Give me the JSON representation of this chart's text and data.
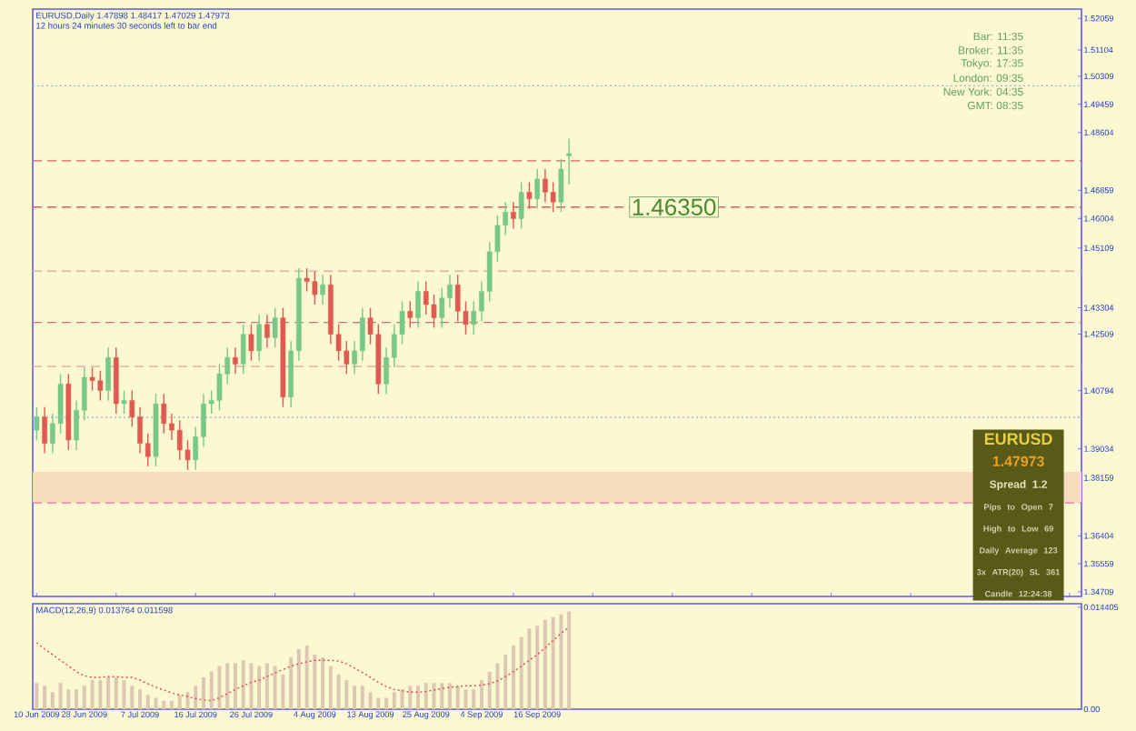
{
  "chart_data": [
    {
      "type": "candlestick",
      "title": "EURUSD,Daily  1.47898 1.48417 1.47029 1.47973",
      "subtitle": "12 hours 24 minutes 30 seconds left to bar end",
      "categories": [
        null,
        null,
        null,
        null,
        null,
        null,
        null,
        null,
        null,
        null,
        null,
        null,
        null,
        null,
        null,
        null,
        null,
        null,
        null,
        null,
        null,
        null,
        null,
        null,
        null,
        null,
        null,
        null,
        null,
        null,
        null,
        null,
        null,
        null,
        null,
        null,
        null,
        null,
        null,
        null,
        null,
        null,
        null,
        null,
        null,
        null,
        null,
        null,
        null,
        null,
        null,
        null,
        null,
        null,
        null,
        null,
        null,
        null,
        null,
        null,
        null,
        null,
        null,
        null,
        null,
        null,
        null,
        null,
        null,
        null,
        null,
        null,
        null,
        null,
        null,
        null,
        null,
        null,
        null,
        null,
        null,
        null,
        null,
        null,
        null,
        null,
        null,
        null,
        null,
        null,
        null,
        null,
        null,
        null,
        null,
        null,
        null,
        null,
        null,
        null,
        null,
        null,
        null,
        null,
        null,
        null,
        null,
        null,
        null,
        null,
        null,
        null,
        null,
        null,
        null,
        null,
        null,
        null,
        null,
        null,
        null,
        null,
        null,
        null,
        null,
        null,
        null,
        null,
        null,
        null,
        null,
        null
      ],
      "ohlc": [
        [
          1.396,
          1.403,
          1.393,
          1.4
        ],
        [
          1.4,
          1.403,
          1.389,
          1.392
        ],
        [
          1.392,
          1.401,
          1.389,
          1.398
        ],
        [
          1.398,
          1.413,
          1.395,
          1.41
        ],
        [
          1.41,
          1.413,
          1.39,
          1.393
        ],
        [
          1.393,
          1.405,
          1.39,
          1.402
        ],
        [
          1.402,
          1.415,
          1.399,
          1.412
        ],
        [
          1.412,
          1.415,
          1.408,
          1.411
        ],
        [
          1.411,
          1.414,
          1.405,
          1.408
        ],
        [
          1.408,
          1.421,
          1.405,
          1.418
        ],
        [
          1.418,
          1.421,
          1.401,
          1.404
        ],
        [
          1.404,
          1.408,
          1.401,
          1.405
        ],
        [
          1.405,
          1.408,
          1.397,
          1.4
        ],
        [
          1.4,
          1.403,
          1.389,
          1.392
        ],
        [
          1.392,
          1.395,
          1.385,
          1.388
        ],
        [
          1.388,
          1.407,
          1.385,
          1.404
        ],
        [
          1.404,
          1.407,
          1.395,
          1.398
        ],
        [
          1.398,
          1.401,
          1.393,
          1.396
        ],
        [
          1.396,
          1.399,
          1.387,
          1.39
        ],
        [
          1.39,
          1.393,
          1.384,
          1.387
        ],
        [
          1.387,
          1.397,
          1.384,
          1.394
        ],
        [
          1.394,
          1.407,
          1.391,
          1.404
        ],
        [
          1.404,
          1.408,
          1.401,
          1.405
        ],
        [
          1.405,
          1.416,
          1.402,
          1.413
        ],
        [
          1.413,
          1.421,
          1.41,
          1.418
        ],
        [
          1.418,
          1.421,
          1.413,
          1.416
        ],
        [
          1.416,
          1.428,
          1.413,
          1.425
        ],
        [
          1.425,
          1.428,
          1.417,
          1.42
        ],
        [
          1.42,
          1.431,
          1.417,
          1.428
        ],
        [
          1.428,
          1.431,
          1.421,
          1.424
        ],
        [
          1.424,
          1.433,
          1.421,
          1.43
        ],
        [
          1.43,
          1.433,
          1.403,
          1.406
        ],
        [
          1.406,
          1.423,
          1.403,
          1.42
        ],
        [
          1.42,
          1.445,
          1.417,
          1.442
        ],
        [
          1.442,
          1.445,
          1.438,
          1.441
        ],
        [
          1.441,
          1.444,
          1.434,
          1.437
        ],
        [
          1.437,
          1.443,
          1.434,
          1.44
        ],
        [
          1.44,
          1.443,
          1.422,
          1.425
        ],
        [
          1.425,
          1.428,
          1.417,
          1.42
        ],
        [
          1.42,
          1.423,
          1.413,
          1.416
        ],
        [
          1.416,
          1.423,
          1.413,
          1.42
        ],
        [
          1.42,
          1.433,
          1.417,
          1.43
        ],
        [
          1.43,
          1.433,
          1.422,
          1.425
        ],
        [
          1.425,
          1.428,
          1.407,
          1.41
        ],
        [
          1.41,
          1.421,
          1.407,
          1.418
        ],
        [
          1.418,
          1.428,
          1.415,
          1.425
        ],
        [
          1.425,
          1.435,
          1.422,
          1.432
        ],
        [
          1.432,
          1.435,
          1.427,
          1.43
        ],
        [
          1.43,
          1.441,
          1.427,
          1.438
        ],
        [
          1.438,
          1.441,
          1.431,
          1.434
        ],
        [
          1.434,
          1.437,
          1.427,
          1.43
        ],
        [
          1.43,
          1.439,
          1.427,
          1.436
        ],
        [
          1.436,
          1.443,
          1.433,
          1.44
        ],
        [
          1.44,
          1.443,
          1.429,
          1.432
        ],
        [
          1.432,
          1.435,
          1.425,
          1.428
        ],
        [
          1.428,
          1.435,
          1.425,
          1.432
        ],
        [
          1.432,
          1.441,
          1.429,
          1.438
        ],
        [
          1.438,
          1.453,
          1.435,
          1.45
        ],
        [
          1.45,
          1.461,
          1.447,
          1.458
        ],
        [
          1.458,
          1.465,
          1.455,
          1.462
        ],
        [
          1.462,
          1.465,
          1.457,
          1.46
        ],
        [
          1.46,
          1.471,
          1.457,
          1.468
        ],
        [
          1.468,
          1.471,
          1.463,
          1.466
        ],
        [
          1.466,
          1.475,
          1.463,
          1.472
        ],
        [
          1.472,
          1.475,
          1.465,
          1.468
        ],
        [
          1.468,
          1.471,
          1.462,
          1.465
        ],
        [
          1.465,
          1.478,
          1.462,
          1.475
        ],
        [
          1.479,
          1.4842,
          1.4703,
          1.4797
        ],
        null,
        null,
        null,
        null,
        null,
        null,
        null,
        null,
        null,
        null,
        null,
        null,
        null,
        null,
        null,
        null,
        null,
        null,
        null,
        null,
        null,
        null,
        null,
        null,
        null,
        null,
        null,
        null,
        null,
        null,
        null,
        null,
        null,
        null,
        null,
        null,
        null,
        null,
        null,
        null,
        null,
        null,
        null,
        null,
        null,
        null,
        null,
        null,
        null,
        null,
        null,
        null,
        null,
        null,
        null,
        null,
        null,
        null,
        null,
        null,
        null,
        null,
        null,
        null
      ],
      "ylim": [
        1.3457,
        1.5234
      ],
      "yticks": [
        1.52059,
        1.51104,
        1.50309,
        1.49459,
        1.48604,
        1.46859,
        1.46004,
        1.45109,
        1.43304,
        1.42509,
        1.40794,
        1.39034,
        1.38159,
        1.36404,
        1.35559,
        1.34709
      ],
      "tick_labels": "y",
      "ref_lines": [
        {
          "axis": "y",
          "value": 1.5002,
          "color": "#a0b4c8",
          "line_style": "dotted"
        },
        {
          "axis": "y",
          "value": 1.4775,
          "color": "#d86060",
          "line_style": "dashed"
        },
        {
          "axis": "y",
          "value": 1.4635,
          "label": "1.46350",
          "color": "#d86060",
          "line_style": "dashed"
        },
        {
          "axis": "y",
          "value": 1.4441,
          "color": "#e0b0a8",
          "line_style": "dashed"
        },
        {
          "axis": "y",
          "value": 1.4286,
          "color": "#d07080",
          "line_style": "dashed"
        },
        {
          "axis": "y",
          "value": 1.4153,
          "color": "#e0b0a8",
          "line_style": "dashed"
        },
        {
          "axis": "y",
          "value": 1.3999,
          "color": "#a0b4c8",
          "line_style": "dotted"
        },
        {
          "axis": "y",
          "value": 1.374,
          "color": "#e070a0",
          "line_style": "dashed"
        }
      ],
      "bands": [
        {
          "axis": "y",
          "from": 1.374,
          "to": 1.3834,
          "color": "#f8dcc0"
        }
      ],
      "annotations": [
        "Bar: 11:35",
        "Broker: 11:35",
        "Tokyo: 17:35",
        "London: 09:35",
        "New York: 04:35",
        "GMT: 08:35",
        "EURUSD",
        "1.47973",
        "Spread 1.2",
        "Pips to Open 7",
        "High to Low 69",
        "Daily Average 123",
        "3x ATR(20) SL 361",
        "Candle 12:24:38"
      ]
    },
    {
      "type": "bar",
      "title": "MACD(12,26,9) 0.013764 0.011598",
      "categories": [
        "10 Jun 2009",
        null,
        null,
        null,
        null,
        null,
        "28 Jun 2009",
        null,
        null,
        null,
        null,
        null,
        null,
        "7 Jul 2009",
        null,
        null,
        null,
        null,
        null,
        null,
        "16 Jul 2009",
        null,
        null,
        null,
        null,
        null,
        null,
        "26 Jul 2009",
        null,
        null,
        null,
        null,
        null,
        null,
        null,
        "4 Aug 2009",
        null,
        null,
        null,
        null,
        null,
        null,
        "13 Aug 2009",
        null,
        null,
        null,
        null,
        null,
        null,
        "25 Aug 2009",
        null,
        null,
        null,
        null,
        null,
        null,
        "4 Sep 2009",
        null,
        null,
        null,
        null,
        null,
        null,
        "16 Sep 2009",
        null,
        null,
        null,
        null,
        null,
        null,
        null,
        null,
        null,
        null,
        null,
        null,
        null,
        null,
        null,
        null,
        null,
        null,
        null,
        null,
        null,
        null,
        null,
        null,
        null,
        null,
        null,
        null,
        null,
        null,
        null,
        null,
        null,
        null,
        null,
        null,
        null,
        null,
        null,
        null,
        null,
        null,
        null,
        null,
        null,
        null,
        null,
        null,
        null,
        null,
        null,
        null,
        null,
        null,
        null,
        null,
        null,
        null,
        null,
        null,
        null,
        null,
        null,
        null,
        null,
        null,
        null,
        null
      ],
      "series": [
        {
          "type": "bar",
          "color": "#dcc8b0",
          "values": [
            0.0037,
            0.0033,
            0.0024,
            0.0037,
            0.0028,
            0.0028,
            0.0033,
            0.0041,
            0.0041,
            0.0045,
            0.0045,
            0.0041,
            0.0033,
            0.0028,
            0.002,
            0.0016,
            0.0012,
            0.0012,
            0.002,
            0.0024,
            0.0033,
            0.0045,
            0.0053,
            0.0061,
            0.0065,
            0.0065,
            0.0069,
            0.0065,
            0.0061,
            0.0065,
            0.0061,
            0.0049,
            0.0073,
            0.0085,
            0.009,
            0.0077,
            0.0073,
            0.0061,
            0.0049,
            0.0041,
            0.0033,
            0.0033,
            0.0024,
            0.0016,
            0.0016,
            0.0024,
            0.0028,
            0.0033,
            0.0033,
            0.0037,
            0.0037,
            0.0037,
            0.0037,
            0.0033,
            0.0028,
            0.0028,
            0.0041,
            0.0053,
            0.0065,
            0.0077,
            0.009,
            0.0102,
            0.0114,
            0.0118,
            0.0126,
            0.013,
            0.0134,
            0.0138,
            null,
            null,
            null,
            null,
            null,
            null,
            null,
            null,
            null,
            null,
            null,
            null,
            null,
            null,
            null,
            null,
            null,
            null,
            null,
            null,
            null,
            null,
            null,
            null,
            null,
            null,
            null,
            null,
            null,
            null,
            null,
            null,
            null,
            null,
            null,
            null,
            null,
            null,
            null,
            null,
            null,
            null,
            null,
            null,
            null,
            null,
            null,
            null,
            null,
            null,
            null,
            null,
            null,
            null,
            null,
            null,
            null,
            null,
            null,
            null,
            null,
            null,
            null,
            null
          ]
        },
        {
          "type": "line",
          "color": "#e04848",
          "line_style": "dotted",
          "values": [
            0.0094,
            0.0085,
            0.0077,
            0.0069,
            0.0061,
            0.0053,
            0.0047,
            0.0045,
            0.0045,
            0.0046,
            0.0046,
            0.0045,
            0.0045,
            0.0041,
            0.0036,
            0.0031,
            0.0027,
            0.0023,
            0.002,
            0.0018,
            0.0015,
            0.0013,
            0.0012,
            0.0016,
            0.0022,
            0.0028,
            0.0033,
            0.0038,
            0.0041,
            0.0046,
            0.0051,
            0.0056,
            0.0061,
            0.0064,
            0.0067,
            0.0069,
            0.0069,
            0.0069,
            0.0068,
            0.0064,
            0.0058,
            0.0052,
            0.0045,
            0.0038,
            0.0032,
            0.0028,
            0.0026,
            0.0024,
            0.0024,
            0.0025,
            0.0027,
            0.0029,
            0.0031,
            0.0032,
            0.0033,
            0.0033,
            0.0034,
            0.0036,
            0.004,
            0.0046,
            0.0053,
            0.0061,
            0.0069,
            0.0077,
            0.0087,
            0.0097,
            0.0107,
            0.0116,
            null,
            null,
            null,
            null,
            null,
            null,
            null,
            null,
            null,
            null,
            null,
            null,
            null,
            null,
            null,
            null,
            null,
            null,
            null,
            null,
            null,
            null,
            null,
            null,
            null,
            null,
            null,
            null,
            null,
            null,
            null,
            null,
            null,
            null,
            null,
            null,
            null,
            null,
            null,
            null,
            null,
            null,
            null,
            null,
            null,
            null,
            null,
            null,
            null,
            null,
            null,
            null,
            null,
            null,
            null,
            null,
            null,
            null,
            null,
            null,
            null,
            null,
            null,
            null
          ]
        }
      ],
      "ylim": [
        0,
        0.0149
      ],
      "yticks": [
        {
          "value": 0.014405,
          "label": "0.014405"
        },
        {
          "value": 0,
          "label": "0.00"
        }
      ]
    }
  ]
}
